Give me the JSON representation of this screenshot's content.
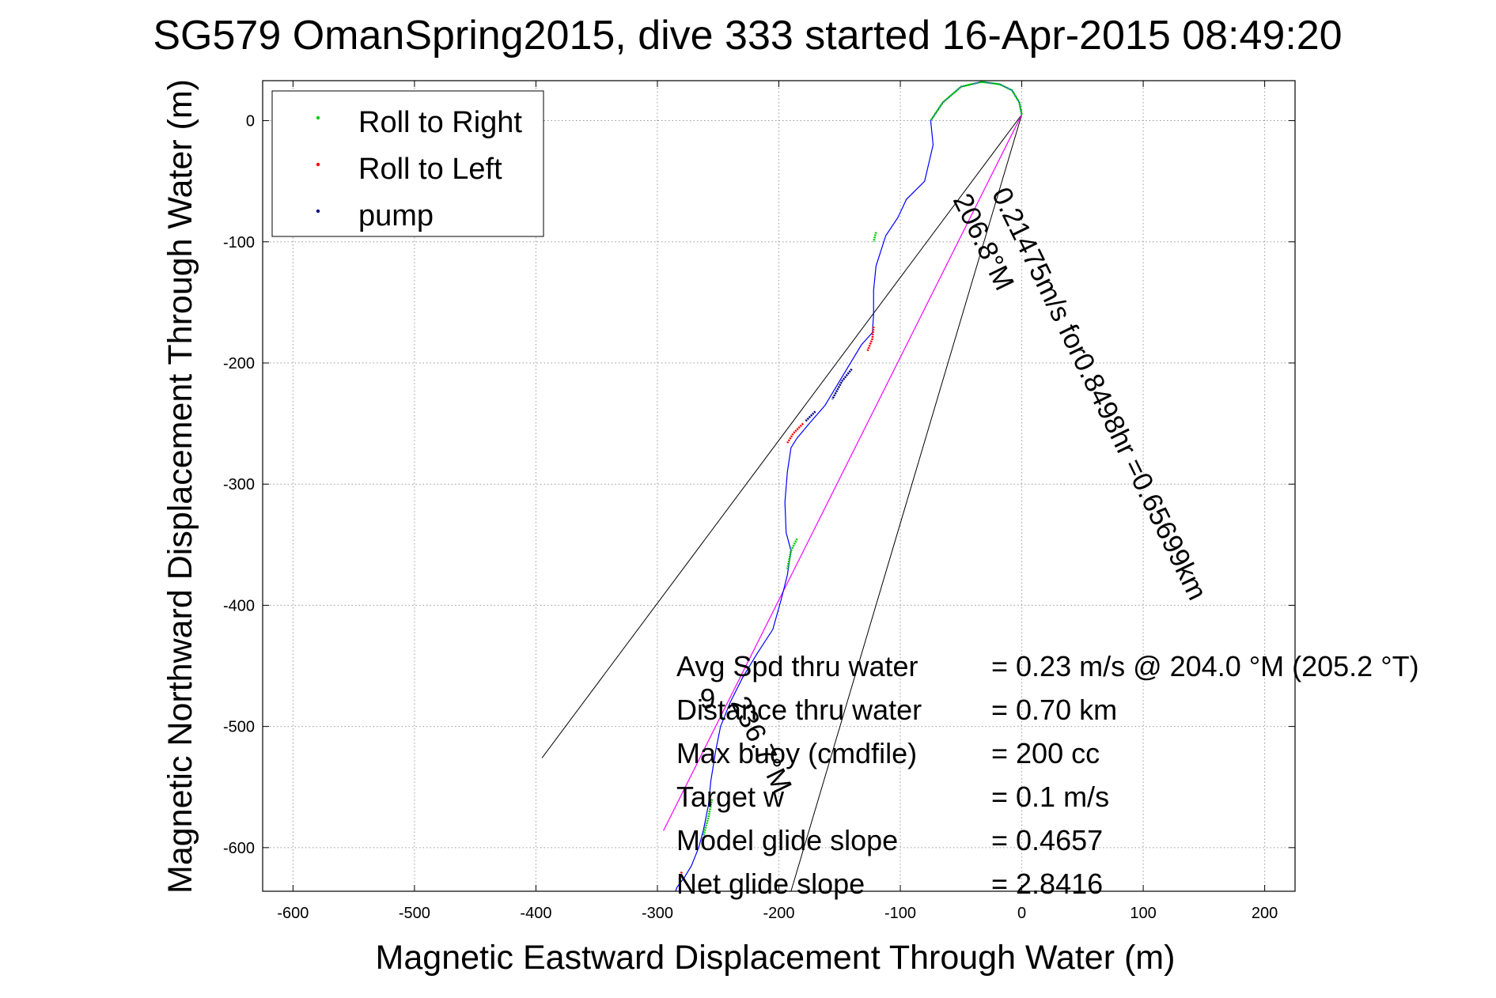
{
  "chart_data": {
    "type": "line",
    "title": "SG579 OmanSpring2015, dive 333 started 16-Apr-2015 08:49:20",
    "xlabel": "Magnetic Eastward Displacement Through Water (m)",
    "ylabel": "Magnetic Northward Displacement Through Water (m)",
    "xlim": [
      -625,
      225
    ],
    "ylim": [
      -636,
      33
    ],
    "xticks": [
      -600,
      -500,
      -400,
      -300,
      -200,
      -100,
      0,
      100,
      200
    ],
    "yticks": [
      0,
      -100,
      -200,
      -300,
      -400,
      -500,
      -600
    ],
    "grid": true,
    "legend_placement": "top-left",
    "legend": [
      {
        "label": "Roll to Right",
        "color": "#00cc00"
      },
      {
        "label": "Roll to Left",
        "color": "#ff0000"
      },
      {
        "label": "pump",
        "color": "#000080"
      }
    ],
    "colors": {
      "track": "#0000ff",
      "heading_line": "#ff00ff",
      "guide_lines": "#000000"
    },
    "track": {
      "x": [
        0,
        -2,
        -8,
        -18,
        -33,
        -50,
        -65,
        -75,
        -73,
        -80,
        -95,
        -102,
        -112,
        -120,
        -122,
        -122,
        -123,
        -132,
        -141,
        -150,
        -162,
        -175,
        -185,
        -190,
        -193,
        -195,
        -194,
        -190,
        -193,
        -198,
        -205,
        -218,
        -230,
        -240,
        -248,
        -252,
        -256,
        -258,
        -262,
        -266,
        -272,
        -278,
        -282,
        -284,
        -285
      ],
      "y": [
        5,
        15,
        25,
        30,
        32,
        28,
        15,
        0,
        -20,
        -50,
        -65,
        -80,
        -95,
        -120,
        -140,
        -160,
        -175,
        -185,
        -200,
        -215,
        -235,
        -250,
        -262,
        -270,
        -290,
        -315,
        -340,
        -355,
        -375,
        -395,
        -420,
        -440,
        -460,
        -480,
        -500,
        -520,
        -545,
        -565,
        -585,
        -600,
        -615,
        -625,
        -630,
        -633,
        -636
      ]
    },
    "roll_right_segments": [
      [
        [
          0,
          5
        ],
        [
          -2,
          15
        ],
        [
          -8,
          25
        ],
        [
          -18,
          30
        ],
        [
          -33,
          32
        ],
        [
          -50,
          28
        ],
        [
          -65,
          15
        ],
        [
          -75,
          0
        ]
      ],
      [
        [
          -120,
          -92
        ],
        [
          -122,
          -100
        ]
      ],
      [
        [
          -185,
          -345
        ],
        [
          -190,
          -355
        ],
        [
          -193,
          -370
        ]
      ],
      [
        [
          -255,
          -560
        ],
        [
          -258,
          -575
        ],
        [
          -262,
          -590
        ]
      ]
    ],
    "roll_left_segments": [
      [
        [
          -122,
          -170
        ],
        [
          -123,
          -180
        ],
        [
          -127,
          -190
        ]
      ],
      [
        [
          -180,
          -250
        ],
        [
          -188,
          -258
        ],
        [
          -193,
          -266
        ]
      ],
      [
        [
          -280,
          -620
        ],
        [
          -282,
          -626
        ]
      ]
    ],
    "pump_segments": [
      [
        [
          -140,
          -205
        ],
        [
          -148,
          -215
        ],
        [
          -156,
          -230
        ]
      ],
      [
        [
          -170,
          -240
        ],
        [
          -178,
          -248
        ]
      ]
    ],
    "heading_line": {
      "x": [
        0,
        -295
      ],
      "y": [
        5,
        -586
      ]
    },
    "guide_lines": [
      {
        "x": [
          0,
          -395
        ],
        "y": [
          5,
          -526
        ]
      },
      {
        "x": [
          0,
          -190
        ],
        "y": [
          5,
          -636
        ]
      }
    ],
    "heading_labels": [
      {
        "text": "206.8°M",
        "x": -57,
        "y": -65,
        "angle_deg": 64
      },
      {
        "text": "0.21475m/s for0.8498hr =0.65699km",
        "x": -25,
        "y": -60,
        "angle_deg": 64
      },
      {
        "text": "236.7°M",
        "x": -240,
        "y": -480,
        "angle_deg": 64
      },
      {
        "text": "9",
        "x": -265,
        "y": -485,
        "angle_deg": 0
      }
    ],
    "stats": [
      {
        "label": "Avg Spd thru water",
        "value": "=  0.23 m/s @ 204.0 °M (205.2 °T)"
      },
      {
        "label": "Distance thru water",
        "value": "=  0.70 km"
      },
      {
        "label": "Max buoy (cmdfile)",
        "value": "= 200 cc"
      },
      {
        "label": "Target w",
        "value": "= 0.1 m/s"
      },
      {
        "label": "Model glide slope",
        "value": "= 0.4657"
      },
      {
        "label": "Net glide slope",
        "value": "= 2.8416"
      }
    ]
  }
}
